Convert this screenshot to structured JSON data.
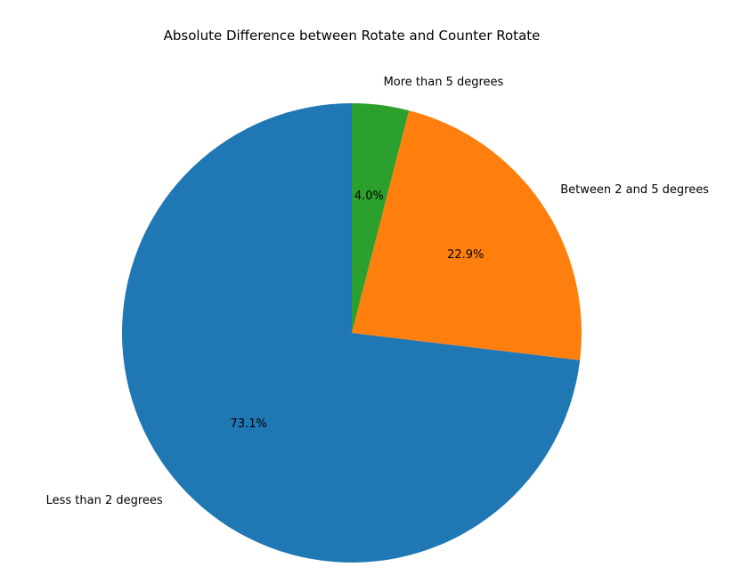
{
  "chart_data": {
    "type": "pie",
    "title": "Absolute Difference between Rotate and Counter Rotate",
    "categories": [
      "Less than 2 degrees",
      "Between 2 and 5 degrees",
      "More than 5 degrees"
    ],
    "values": [
      73.1,
      22.9,
      4.0
    ],
    "percent_labels": [
      "73.1%",
      "22.9%",
      "4.0%"
    ],
    "colors": [
      "#1f77b4",
      "#ff7f0e",
      "#2ca02c"
    ],
    "start_angle_deg": 90,
    "direction": "counterclockwise",
    "legend": "none"
  }
}
